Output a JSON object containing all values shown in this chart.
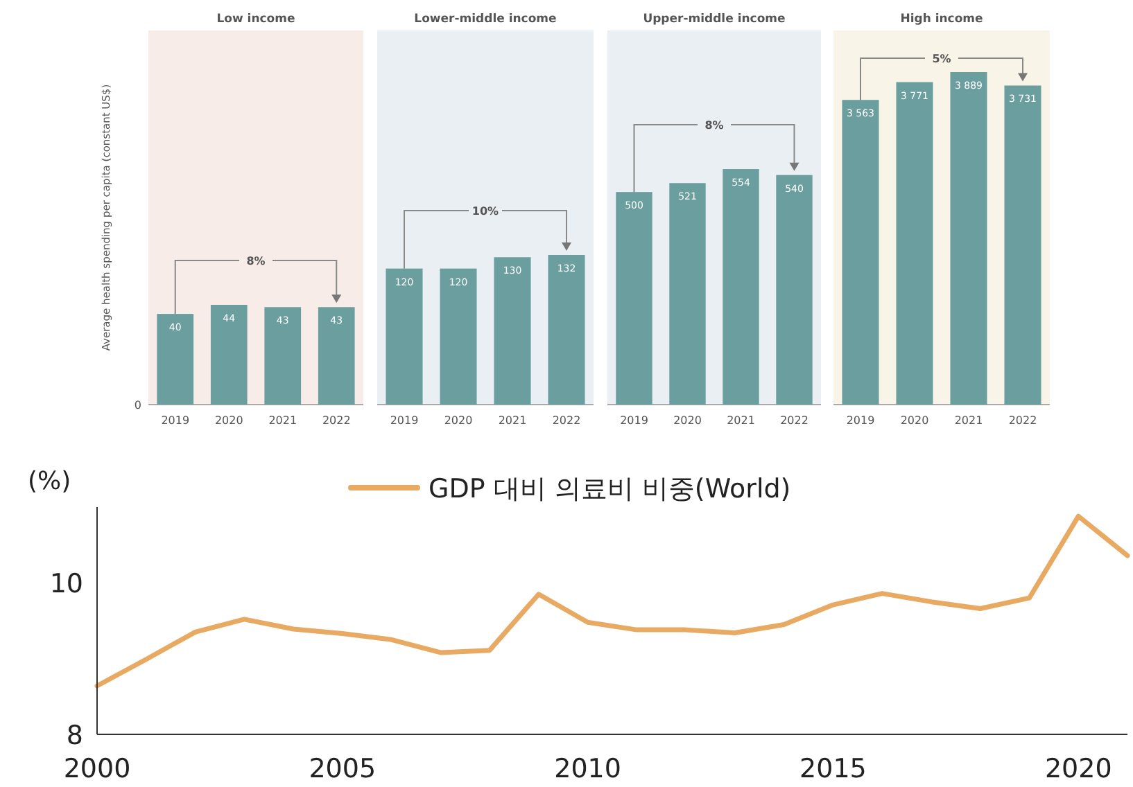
{
  "chart_data": [
    {
      "type": "bar",
      "title": "Low income",
      "ylabel": "Average health spending per capita (constant US$)",
      "categories": [
        "2019",
        "2020",
        "2021",
        "2022"
      ],
      "values": [
        40,
        44,
        43,
        43
      ],
      "value_labels": [
        "40",
        "44",
        "43",
        "43"
      ],
      "color": "#6a9e9f",
      "ylim": [
        0,
        165
      ],
      "tick_labels": "x",
      "bands": [
        {
          "axis": "y",
          "from": 0,
          "to": 165,
          "color": "#f7ece7"
        }
      ],
      "annotations": [
        "8%",
        "0"
      ]
    },
    {
      "type": "bar",
      "title": "Lower-middle income",
      "categories": [
        "2019",
        "2020",
        "2021",
        "2022"
      ],
      "values": [
        120,
        120,
        130,
        132
      ],
      "value_labels": [
        "120",
        "120",
        "130",
        "132"
      ],
      "color": "#6a9e9f",
      "ylim": [
        0,
        330
      ],
      "tick_labels": "x",
      "bands": [
        {
          "axis": "y",
          "from": 0,
          "to": 330,
          "color": "#e9eff2"
        }
      ],
      "annotations": [
        "10%"
      ]
    },
    {
      "type": "bar",
      "title": "Upper-middle income",
      "categories": [
        "2019",
        "2020",
        "2021",
        "2022"
      ],
      "values": [
        500,
        521,
        554,
        540
      ],
      "value_labels": [
        "500",
        "521",
        "554",
        "540"
      ],
      "color": "#6a9e9f",
      "ylim": [
        0,
        880
      ],
      "tick_labels": "x",
      "bands": [
        {
          "axis": "y",
          "from": 0,
          "to": 880,
          "color": "#e9eff2"
        }
      ],
      "annotations": [
        "8%"
      ]
    },
    {
      "type": "bar",
      "title": "High income",
      "categories": [
        "2019",
        "2020",
        "2021",
        "2022"
      ],
      "values": [
        3563,
        3771,
        3889,
        3731
      ],
      "value_labels": [
        "3 563",
        "3 771",
        "3 889",
        "3 731"
      ],
      "color": "#6a9e9f",
      "ylim": [
        0,
        4375
      ],
      "tick_labels": "x",
      "bands": [
        {
          "axis": "y",
          "from": 0,
          "to": 4375,
          "color": "#f8f5e8"
        }
      ],
      "annotations": [
        "5%"
      ]
    },
    {
      "type": "line",
      "ylabel": "(%)",
      "x": [
        2000,
        2001,
        2002,
        2003,
        2004,
        2005,
        2006,
        2007,
        2008,
        2009,
        2010,
        2011,
        2012,
        2013,
        2014,
        2015,
        2016,
        2017,
        2018,
        2019,
        2020,
        2021
      ],
      "series": [
        {
          "name": "GDP 대비 의료비 비중(World)",
          "color": "#e8aa62",
          "values": [
            8.64,
            8.99,
            9.35,
            9.52,
            9.39,
            9.33,
            9.25,
            9.08,
            9.11,
            9.85,
            9.48,
            9.38,
            9.38,
            9.34,
            9.45,
            9.71,
            9.86,
            9.75,
            9.66,
            9.8,
            10.88,
            10.36
          ]
        }
      ],
      "xlim": [
        2000,
        2021
      ],
      "xticks": [
        2000,
        2005,
        2010,
        2015,
        2020
      ],
      "ylim": [
        8,
        11
      ],
      "yticks": [
        8,
        10
      ],
      "legend": "top",
      "line_style": "solid"
    }
  ]
}
